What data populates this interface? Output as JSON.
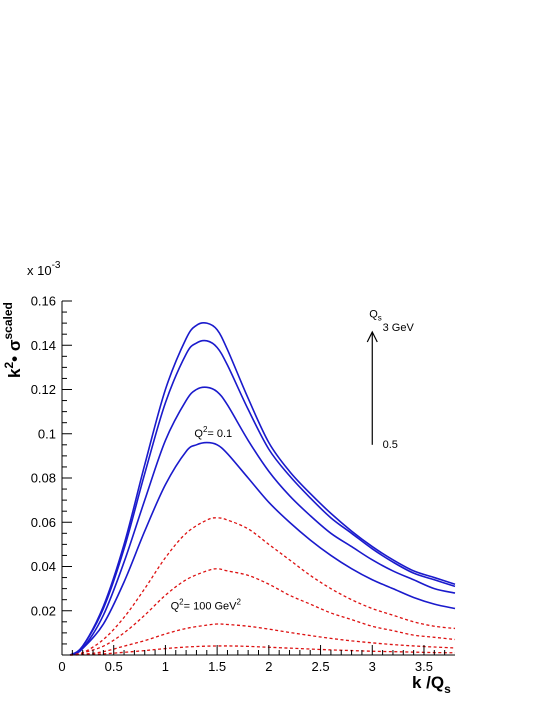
{
  "chart_data": {
    "type": "line",
    "title": "",
    "xlabel": "k /Q",
    "xlabel_sub": "s",
    "ylabel_base": "k",
    "ylabel_exp": "2",
    "ylabel_mid": "• σ",
    "ylabel_sup": "scaled",
    "y_multiplier": "x 10",
    "y_multiplier_exp": "-3",
    "xlim": [
      0,
      3.8
    ],
    "ylim": [
      0,
      0.16
    ],
    "x_ticks": [
      0,
      0.5,
      1,
      1.5,
      2,
      2.5,
      3,
      3.5
    ],
    "x_tick_labels": [
      "0",
      "0.5",
      "1",
      "1.5",
      "2",
      "2.5",
      "3",
      "3.5"
    ],
    "y_ticks": [
      0.02,
      0.04,
      0.06,
      0.08,
      0.1,
      0.12,
      0.14,
      0.16
    ],
    "y_tick_labels": [
      "0.02",
      "0.04",
      "0.06",
      "0.08",
      "0.1",
      "0.12",
      "0.14",
      "0.16"
    ],
    "grid": false,
    "legend": "none",
    "colors": {
      "solid": "#1a1acc",
      "dashed": "#dd1111",
      "axis": "#000000"
    },
    "series": [
      {
        "style": "solid",
        "color": "#1a1acc",
        "x": [
          0.08,
          0.2,
          0.4,
          0.6,
          0.8,
          1.0,
          1.2,
          1.3,
          1.4,
          1.5,
          1.6,
          1.8,
          2.0,
          2.2,
          2.4,
          2.6,
          2.8,
          3.0,
          3.2,
          3.4,
          3.6,
          3.8
        ],
        "y": [
          0.0,
          0.004,
          0.022,
          0.05,
          0.086,
          0.12,
          0.143,
          0.149,
          0.15,
          0.147,
          0.138,
          0.116,
          0.096,
          0.083,
          0.073,
          0.064,
          0.056,
          0.049,
          0.043,
          0.038,
          0.035,
          0.032
        ]
      },
      {
        "style": "solid",
        "color": "#1a1acc",
        "x": [
          0.08,
          0.2,
          0.4,
          0.6,
          0.8,
          1.0,
          1.2,
          1.3,
          1.4,
          1.5,
          1.6,
          1.8,
          2.0,
          2.2,
          2.4,
          2.6,
          2.8,
          3.0,
          3.2,
          3.4,
          3.6,
          3.8
        ],
        "y": [
          0.0,
          0.004,
          0.021,
          0.048,
          0.082,
          0.114,
          0.136,
          0.141,
          0.142,
          0.139,
          0.131,
          0.111,
          0.093,
          0.081,
          0.071,
          0.062,
          0.055,
          0.048,
          0.042,
          0.037,
          0.034,
          0.031
        ]
      },
      {
        "style": "solid",
        "color": "#1a1acc",
        "x": [
          0.08,
          0.2,
          0.4,
          0.6,
          0.8,
          1.0,
          1.2,
          1.3,
          1.4,
          1.5,
          1.6,
          1.8,
          2.0,
          2.2,
          2.4,
          2.6,
          2.8,
          3.0,
          3.2,
          3.4,
          3.6,
          3.8
        ],
        "y": [
          0.0,
          0.003,
          0.018,
          0.042,
          0.07,
          0.097,
          0.115,
          0.12,
          0.121,
          0.119,
          0.113,
          0.097,
          0.083,
          0.072,
          0.063,
          0.055,
          0.049,
          0.043,
          0.038,
          0.034,
          0.03,
          0.028
        ]
      },
      {
        "style": "solid",
        "color": "#1a1acc",
        "x": [
          0.08,
          0.2,
          0.4,
          0.6,
          0.8,
          1.0,
          1.2,
          1.3,
          1.4,
          1.5,
          1.6,
          1.8,
          2.0,
          2.2,
          2.4,
          2.6,
          2.8,
          3.0,
          3.2,
          3.4,
          3.6,
          3.8
        ],
        "y": [
          0.0,
          0.003,
          0.014,
          0.033,
          0.056,
          0.077,
          0.092,
          0.095,
          0.096,
          0.095,
          0.091,
          0.08,
          0.069,
          0.06,
          0.052,
          0.045,
          0.039,
          0.034,
          0.03,
          0.026,
          0.023,
          0.021
        ]
      },
      {
        "style": "dashed",
        "color": "#dd1111",
        "x": [
          0.08,
          0.2,
          0.4,
          0.6,
          0.8,
          1.0,
          1.2,
          1.4,
          1.5,
          1.6,
          1.8,
          2.0,
          2.2,
          2.4,
          2.6,
          2.8,
          3.0,
          3.2,
          3.4,
          3.6,
          3.8
        ],
        "y": [
          0.0,
          0.001,
          0.007,
          0.017,
          0.03,
          0.044,
          0.055,
          0.061,
          0.062,
          0.061,
          0.057,
          0.05,
          0.043,
          0.036,
          0.03,
          0.025,
          0.021,
          0.018,
          0.015,
          0.013,
          0.012
        ]
      },
      {
        "style": "dashed",
        "color": "#dd1111",
        "x": [
          0.08,
          0.2,
          0.4,
          0.6,
          0.8,
          1.0,
          1.2,
          1.4,
          1.5,
          1.6,
          1.8,
          2.0,
          2.2,
          2.4,
          2.6,
          2.8,
          3.0,
          3.2,
          3.4,
          3.6,
          3.8
        ],
        "y": [
          0.0,
          0.001,
          0.004,
          0.01,
          0.018,
          0.027,
          0.034,
          0.038,
          0.039,
          0.038,
          0.036,
          0.032,
          0.027,
          0.023,
          0.019,
          0.016,
          0.013,
          0.011,
          0.009,
          0.008,
          0.007
        ]
      },
      {
        "style": "dashed",
        "color": "#dd1111",
        "x": [
          0.08,
          0.2,
          0.4,
          0.6,
          0.8,
          1.0,
          1.2,
          1.4,
          1.5,
          1.6,
          1.8,
          2.0,
          2.2,
          2.4,
          2.6,
          2.8,
          3.0,
          3.2,
          3.4,
          3.6,
          3.8
        ],
        "y": [
          0.0,
          0.0003,
          0.0015,
          0.004,
          0.0065,
          0.0095,
          0.012,
          0.0135,
          0.014,
          0.0138,
          0.013,
          0.0117,
          0.0102,
          0.0088,
          0.0075,
          0.0064,
          0.0055,
          0.0047,
          0.0041,
          0.0036,
          0.0032
        ]
      },
      {
        "style": "dashed",
        "color": "#dd1111",
        "x": [
          0.08,
          0.2,
          0.4,
          0.6,
          0.8,
          1.0,
          1.2,
          1.4,
          1.6,
          1.8,
          2.0,
          2.2,
          2.4,
          2.6,
          2.8,
          3.0,
          3.2,
          3.4,
          3.6,
          3.8
        ],
        "y": [
          0.0,
          0.0001,
          0.0005,
          0.0012,
          0.002,
          0.0029,
          0.0036,
          0.004,
          0.0041,
          0.0039,
          0.0035,
          0.0031,
          0.0027,
          0.0023,
          0.002,
          0.0017,
          0.0015,
          0.0013,
          0.0011,
          0.001
        ]
      }
    ],
    "annotations": {
      "q2_low": {
        "base": "Q",
        "sup": "2",
        "rest": "= 0.1",
        "x": 1.28,
        "y": 0.0985
      },
      "q2_high": {
        "base": "Q",
        "sup": "2",
        "rest": "= 100  GeV",
        "sup2": "2",
        "x": 1.05,
        "y": 0.0205
      },
      "qs_label": {
        "base": "Q",
        "sub": "s",
        "x": 2.97,
        "y": 0.1525
      },
      "qs_top": {
        "text": "3 GeV",
        "x": 3.1,
        "y": 0.1465
      },
      "qs_bottom": {
        "text": "0.5",
        "x": 3.1,
        "y": 0.0935
      },
      "arrow": {
        "x": 3.0,
        "y_from": 0.095,
        "y_to": 0.146
      }
    }
  }
}
